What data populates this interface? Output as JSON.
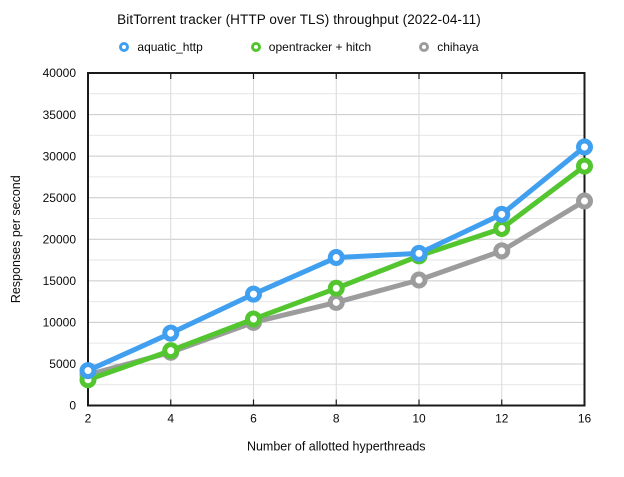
{
  "title": "BitTorrent tracker (HTTP over TLS) throughput (2022-04-11)",
  "chart_data": {
    "type": "line",
    "title": "BitTorrent tracker (HTTP over TLS) throughput (2022-04-11)",
    "xlabel": "Number of allotted hyperthreads",
    "ylabel": "Responses per second",
    "categories": [
      2,
      4,
      6,
      8,
      10,
      12,
      16
    ],
    "series": [
      {
        "name": "aquatic_http",
        "color": "#419FF0",
        "marker": "ring",
        "values": [
          4200,
          8700,
          13400,
          17800,
          18300,
          23000,
          31100
        ]
      },
      {
        "name": "opentracker + hitch",
        "color": "#53C62F",
        "marker": "ring",
        "values": [
          3100,
          6600,
          10400,
          14100,
          18000,
          21300,
          28800
        ]
      },
      {
        "name": "chihaya",
        "color": "#9C9C9C",
        "marker": "ring",
        "values": [
          3700,
          6400,
          10000,
          12400,
          15100,
          18600,
          24600
        ]
      }
    ],
    "ylim": [
      0,
      40000
    ],
    "y_major_step": 5000,
    "y_minor_step": 2500,
    "y_tick_labels": [
      "0",
      "5000",
      "10000",
      "15000",
      "20000",
      "25000",
      "30000",
      "35000",
      "40000"
    ],
    "x_tick_labels": [
      "2",
      "4",
      "6",
      "8",
      "10",
      "12",
      "16"
    ],
    "grid": true,
    "legend_position": "top",
    "colors": {
      "frame": "#1a1a1a",
      "major_grid": "#c9c9c9",
      "minor_grid": "#e6e6e6",
      "vertical_grid": "#d9d9d9",
      "text": "#0b0b0b",
      "marker_fill": "#ffffff"
    }
  }
}
